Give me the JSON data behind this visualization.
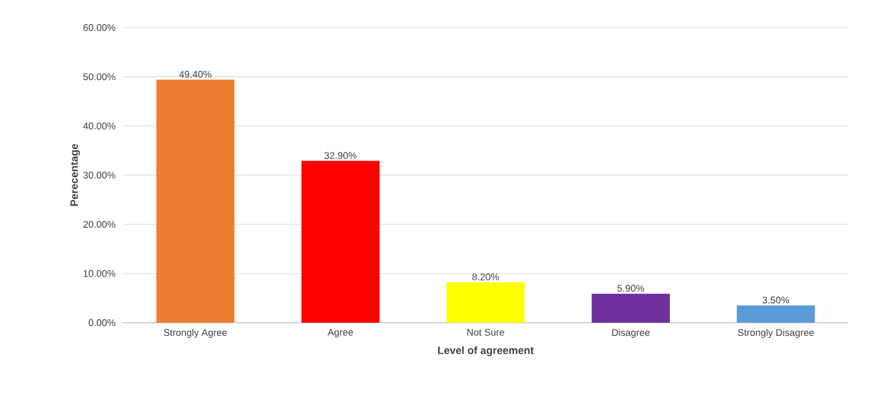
{
  "chart_data": {
    "type": "bar",
    "xlabel": "Level of agreement",
    "ylabel": "Perecentage",
    "categories": [
      "Strongly Agree",
      "Agree",
      "Not Sure",
      "Disagree",
      "Strongly Disagree"
    ],
    "values": [
      49.4,
      32.9,
      8.2,
      5.9,
      3.5
    ],
    "colors": [
      "#ed7d31",
      "#ff0000",
      "#ffff00",
      "#7030a0",
      "#5b9bd5"
    ],
    "value_labels": [
      "49.40%",
      "32.90%",
      "8.20%",
      "5.90%",
      "3.50%"
    ],
    "ylim": [
      0,
      60
    ],
    "yticks": [
      {
        "value": 0,
        "label": "0.00%"
      },
      {
        "value": 10,
        "label": "10.00%"
      },
      {
        "value": 20,
        "label": "20.00%"
      },
      {
        "value": 30,
        "label": "30.00%"
      },
      {
        "value": 40,
        "label": "40.00%"
      },
      {
        "value": 50,
        "label": "50.00%"
      },
      {
        "value": 60,
        "label": "60.00%"
      }
    ],
    "grid": "y"
  }
}
